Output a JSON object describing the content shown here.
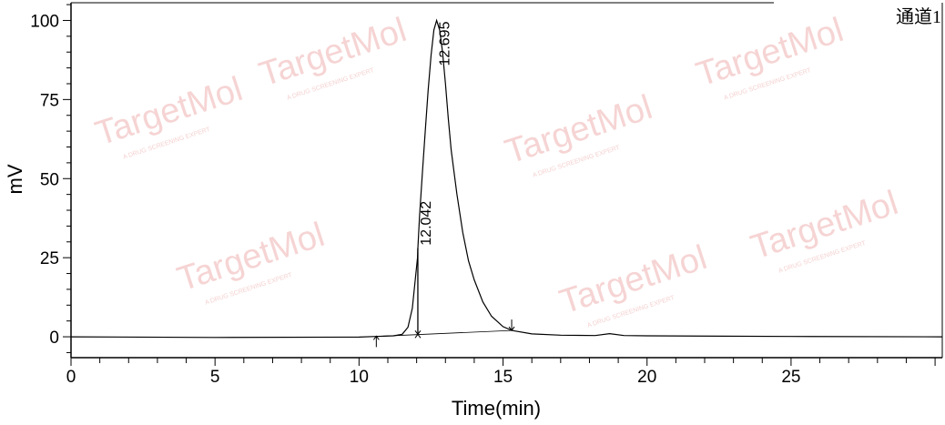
{
  "chart_data": {
    "type": "line",
    "title": "",
    "channel_label": "通道1",
    "xlabel": "Time(min)",
    "ylabel": "mV",
    "xlim": [
      0,
      30.25
    ],
    "ylim": [
      -6.6,
      105.6
    ],
    "x_ticks": [
      0,
      5,
      10,
      15,
      20,
      25
    ],
    "y_ticks": [
      0,
      25,
      50,
      75,
      100
    ],
    "grid": false,
    "line_color": "#000000",
    "watermark": "TargetMol",
    "watermark_tagline": "A DRUG SCREENING EXPERT",
    "watermark_color": "#f3c6c6",
    "series": [
      {
        "x": [
          0,
          5,
          10,
          10.6,
          11.2,
          11.5,
          11.7,
          11.85,
          11.95,
          12.03,
          12.042,
          12.1,
          12.2,
          12.3,
          12.4,
          12.5,
          12.6,
          12.695,
          12.8,
          12.9,
          13.0,
          13.1,
          13.2,
          13.4,
          13.6,
          13.8,
          14.0,
          14.3,
          14.6,
          15.0,
          15.3,
          16,
          17,
          18.2,
          18.7,
          19.2,
          20,
          25,
          30.25
        ],
        "y": [
          0,
          -0.2,
          -0.1,
          0.1,
          0.3,
          0.8,
          3,
          9,
          18,
          25,
          28,
          38,
          52,
          65,
          78,
          89,
          97,
          100,
          97,
          90,
          80,
          69,
          59,
          45,
          33,
          24,
          18,
          11,
          6.5,
          3.2,
          2,
          0.9,
          0.5,
          0.4,
          1.0,
          0.4,
          0.3,
          0.1,
          0
        ]
      }
    ],
    "peaks": [
      {
        "label": "12.042",
        "time": 12.042,
        "height": 28
      },
      {
        "label": "12.695",
        "time": 12.695,
        "height": 100
      }
    ],
    "integration_baseline": {
      "start": 10.6,
      "split": 12.042,
      "end": 15.3
    }
  }
}
